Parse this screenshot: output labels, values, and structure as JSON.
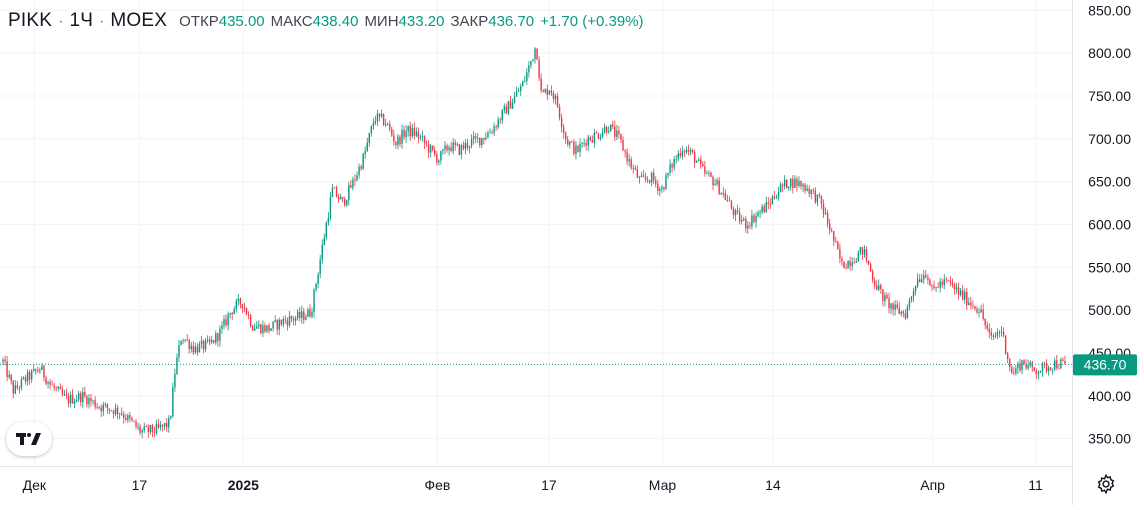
{
  "legend": {
    "symbol": "PIKK",
    "separator": "·",
    "interval": "1Ч",
    "exchange": "MOEX",
    "open_label": "ОТКР",
    "open_value": "435.00",
    "high_label": "МАКС",
    "high_value": "438.40",
    "low_label": "МИН",
    "low_value": "433.20",
    "close_label": "ЗАКР",
    "close_value": "436.70",
    "change": "+1.70 (+0.39%)"
  },
  "colors": {
    "up": "#089981",
    "down": "#f23645",
    "grid": "#f0f3fa",
    "text": "#131722",
    "price_line": "#089981"
  },
  "settings_icon": "gear-icon",
  "logo_icon": "tradingview-logo",
  "chart_data": {
    "type": "candlestick",
    "title": "PIKK · 1Ч · MOEX",
    "current_price": 436.7,
    "current_price_label": "436.70",
    "ylim": [
      318,
      862
    ],
    "y_ticks": [
      850,
      800,
      750,
      700,
      650,
      600,
      550,
      500,
      450,
      400,
      350
    ],
    "y_tick_labels": [
      "850.00",
      "800.00",
      "750.00",
      "700.00",
      "650.00",
      "600.00",
      "550.00",
      "500.00",
      "450.00",
      "400.00",
      "350.00"
    ],
    "x_ticks": [
      {
        "label": "Дек",
        "t": 0.032,
        "bold": false
      },
      {
        "label": "17",
        "t": 0.13,
        "bold": false
      },
      {
        "label": "2025",
        "t": 0.227,
        "bold": true
      },
      {
        "label": "Фев",
        "t": 0.408,
        "bold": false
      },
      {
        "label": "17",
        "t": 0.512,
        "bold": false
      },
      {
        "label": "Мар",
        "t": 0.618,
        "bold": false
      },
      {
        "label": "14",
        "t": 0.721,
        "bold": false
      },
      {
        "label": "Апр",
        "t": 0.87,
        "bold": false
      },
      {
        "label": "11",
        "t": 0.966,
        "bold": false
      }
    ],
    "path_keypoints": [
      [
        0.0,
        440
      ],
      [
        0.01,
        405
      ],
      [
        0.02,
        418
      ],
      [
        0.035,
        432
      ],
      [
        0.045,
        412
      ],
      [
        0.06,
        395
      ],
      [
        0.075,
        400
      ],
      [
        0.09,
        388
      ],
      [
        0.11,
        382
      ],
      [
        0.13,
        358
      ],
      [
        0.145,
        360
      ],
      [
        0.157,
        368
      ],
      [
        0.162,
        430
      ],
      [
        0.168,
        470
      ],
      [
        0.18,
        455
      ],
      [
        0.195,
        460
      ],
      [
        0.205,
        475
      ],
      [
        0.215,
        500
      ],
      [
        0.225,
        510
      ],
      [
        0.235,
        482
      ],
      [
        0.25,
        478
      ],
      [
        0.265,
        488
      ],
      [
        0.28,
        492
      ],
      [
        0.29,
        498
      ],
      [
        0.298,
        555
      ],
      [
        0.31,
        640
      ],
      [
        0.32,
        625
      ],
      [
        0.33,
        650
      ],
      [
        0.34,
        680
      ],
      [
        0.35,
        725
      ],
      [
        0.36,
        720
      ],
      [
        0.37,
        695
      ],
      [
        0.38,
        710
      ],
      [
        0.39,
        705
      ],
      [
        0.4,
        690
      ],
      [
        0.41,
        676
      ],
      [
        0.42,
        692
      ],
      [
        0.43,
        687
      ],
      [
        0.44,
        696
      ],
      [
        0.45,
        700
      ],
      [
        0.46,
        710
      ],
      [
        0.47,
        728
      ],
      [
        0.48,
        745
      ],
      [
        0.49,
        765
      ],
      [
        0.497,
        790
      ],
      [
        0.502,
        810
      ],
      [
        0.507,
        750
      ],
      [
        0.515,
        760
      ],
      [
        0.522,
        740
      ],
      [
        0.53,
        700
      ],
      [
        0.54,
        685
      ],
      [
        0.55,
        700
      ],
      [
        0.56,
        705
      ],
      [
        0.57,
        715
      ],
      [
        0.58,
        700
      ],
      [
        0.59,
        672
      ],
      [
        0.6,
        650
      ],
      [
        0.61,
        655
      ],
      [
        0.62,
        640
      ],
      [
        0.63,
        670
      ],
      [
        0.64,
        690
      ],
      [
        0.65,
        680
      ],
      [
        0.66,
        660
      ],
      [
        0.67,
        650
      ],
      [
        0.68,
        632
      ],
      [
        0.69,
        610
      ],
      [
        0.7,
        600
      ],
      [
        0.71,
        612
      ],
      [
        0.72,
        622
      ],
      [
        0.73,
        640
      ],
      [
        0.74,
        650
      ],
      [
        0.75,
        648
      ],
      [
        0.76,
        640
      ],
      [
        0.77,
        625
      ],
      [
        0.78,
        590
      ],
      [
        0.79,
        552
      ],
      [
        0.8,
        560
      ],
      [
        0.81,
        570
      ],
      [
        0.82,
        535
      ],
      [
        0.83,
        512
      ],
      [
        0.84,
        500
      ],
      [
        0.85,
        496
      ],
      [
        0.86,
        535
      ],
      [
        0.87,
        545
      ],
      [
        0.875,
        520
      ],
      [
        0.88,
        530
      ],
      [
        0.89,
        532
      ],
      [
        0.9,
        520
      ],
      [
        0.91,
        510
      ],
      [
        0.92,
        500
      ],
      [
        0.93,
        465
      ],
      [
        0.94,
        478
      ],
      [
        0.95,
        425
      ],
      [
        0.96,
        440
      ],
      [
        0.97,
        430
      ],
      [
        0.98,
        432
      ],
      [
        0.99,
        438
      ],
      [
        1.0,
        436.7
      ]
    ]
  }
}
